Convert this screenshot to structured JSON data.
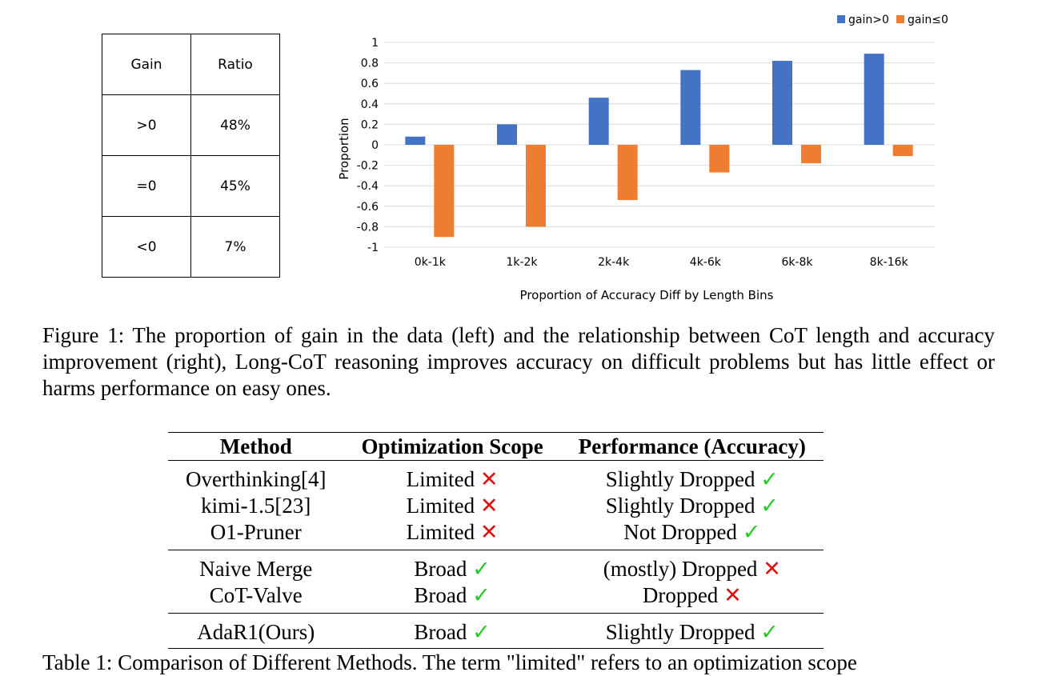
{
  "gain_table": {
    "headers": [
      "Gain",
      "Ratio"
    ],
    "rows": [
      [
        ">0",
        "48%"
      ],
      [
        "=0",
        "45%"
      ],
      [
        "<0",
        "7%"
      ]
    ]
  },
  "chart_data": {
    "type": "bar",
    "categories": [
      "0k-1k",
      "1k-2k",
      "2k-4k",
      "4k-6k",
      "6k-8k",
      "8k-16k"
    ],
    "series": [
      {
        "name": "gain>0",
        "color": "#4472c4",
        "values": [
          0.08,
          0.2,
          0.46,
          0.73,
          0.82,
          0.89
        ]
      },
      {
        "name": "gain≤0",
        "color": "#ed7d31",
        "values": [
          -0.9,
          -0.8,
          -0.54,
          -0.27,
          -0.18,
          -0.11
        ]
      }
    ],
    "title": "",
    "xlabel": "Proportion of Accuracy Diff by Length Bins",
    "ylabel": "Proportion",
    "ylim": [
      -1,
      1
    ],
    "yticks": [
      "1",
      "0.8",
      "0.6",
      "0.4",
      "0.2",
      "0",
      "-0.2",
      "-0.4",
      "-0.6",
      "-0.8",
      "-1"
    ],
    "grid": true,
    "legend": "top-right"
  },
  "figure_caption": "Figure 1: The proportion of gain in the data (left) and the relationship between CoT length and accuracy improvement (right), Long-CoT reasoning improves accuracy on difficult problems but has little effect or harms performance on easy ones.",
  "methods_table": {
    "headers": [
      "Method",
      "Optimization Scope",
      "Performance (Accuracy)"
    ],
    "rows": [
      {
        "method": "Overthinking[4]",
        "scope": "Limited",
        "scope_mark": "✕",
        "perf": "Slightly Dropped",
        "perf_mark": "✓"
      },
      {
        "method": "kimi-1.5[23]",
        "scope": "Limited",
        "scope_mark": "✕",
        "perf": "Slightly Dropped",
        "perf_mark": "✓"
      },
      {
        "method": "O1-Pruner",
        "scope": "Limited",
        "scope_mark": "✕",
        "perf": "Not Dropped",
        "perf_mark": "✓"
      },
      {
        "method": "Naive Merge",
        "scope": "Broad",
        "scope_mark": "✓",
        "perf": "(mostly) Dropped",
        "perf_mark": "✕"
      },
      {
        "method": "CoT-Valve",
        "scope": "Broad",
        "scope_mark": "✓",
        "perf": "Dropped",
        "perf_mark": "✕"
      },
      {
        "method": "AdaR1(Ours)",
        "scope": "Broad",
        "scope_mark": "✓",
        "perf": "Slightly Dropped",
        "perf_mark": "✓"
      }
    ]
  },
  "table_caption": "Table 1: Comparison of Different Methods. The term \"limited\" refers to an optimization scope"
}
